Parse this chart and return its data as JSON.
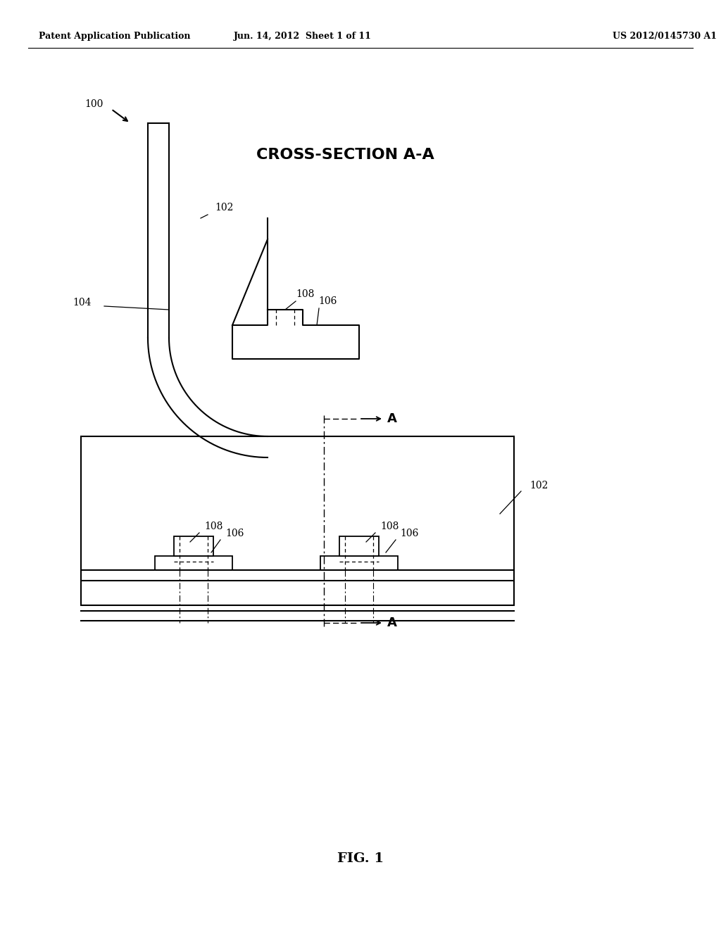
{
  "bg_color": "#ffffff",
  "header_left": "Patent Application Publication",
  "header_center": "Jun. 14, 2012  Sheet 1 of 11",
  "header_right": "US 2012/0145730 A1",
  "fig_label": "FIG. 1"
}
